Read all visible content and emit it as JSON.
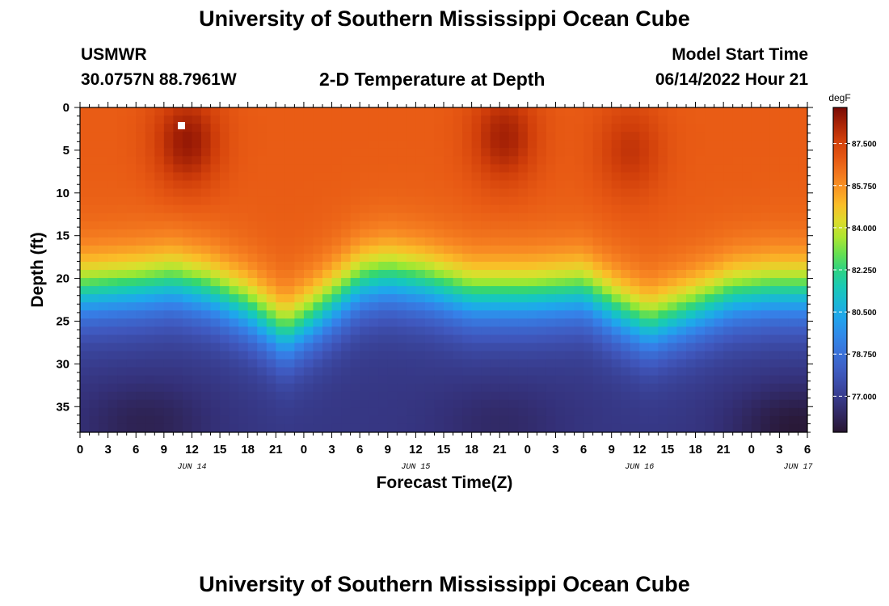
{
  "page": {
    "title_top": "University of Southern Mississippi Ocean Cube",
    "title_bottom": "University of Southern Mississippi Ocean Cube",
    "station": "USMWR",
    "coords": "30.0757N  88.7961W",
    "subtitle": "2-D Temperature at Depth",
    "model_start_label": "Model Start Time",
    "model_start_value": "06/14/2022 Hour 21"
  },
  "chart_data": {
    "type": "heatmap",
    "title": "2-D Temperature at Depth",
    "xlabel": "Forecast Time(Z)",
    "ylabel": "Depth (ft)",
    "colorbar_units": "degF",
    "x_range_hours": [
      0,
      78
    ],
    "x_ticks": [
      {
        "hour": 0,
        "label": "0"
      },
      {
        "hour": 3,
        "label": "3"
      },
      {
        "hour": 6,
        "label": "6"
      },
      {
        "hour": 9,
        "label": "9"
      },
      {
        "hour": 12,
        "label": "12"
      },
      {
        "hour": 15,
        "label": "15"
      },
      {
        "hour": 18,
        "label": "18"
      },
      {
        "hour": 21,
        "label": "21"
      },
      {
        "hour": 24,
        "label": "0"
      },
      {
        "hour": 27,
        "label": "3"
      },
      {
        "hour": 30,
        "label": "6"
      },
      {
        "hour": 33,
        "label": "9"
      },
      {
        "hour": 36,
        "label": "12"
      },
      {
        "hour": 39,
        "label": "15"
      },
      {
        "hour": 42,
        "label": "18"
      },
      {
        "hour": 45,
        "label": "21"
      },
      {
        "hour": 48,
        "label": "0"
      },
      {
        "hour": 51,
        "label": "3"
      },
      {
        "hour": 54,
        "label": "6"
      },
      {
        "hour": 57,
        "label": "9"
      },
      {
        "hour": 60,
        "label": "12"
      },
      {
        "hour": 63,
        "label": "15"
      },
      {
        "hour": 66,
        "label": "18"
      },
      {
        "hour": 69,
        "label": "21"
      },
      {
        "hour": 72,
        "label": "0"
      },
      {
        "hour": 75,
        "label": "3"
      },
      {
        "hour": 78,
        "label": "6"
      }
    ],
    "date_labels": [
      {
        "hour": 12,
        "label": "JUN 14"
      },
      {
        "hour": 36,
        "label": "JUN 15"
      },
      {
        "hour": 60,
        "label": "JUN 16"
      },
      {
        "hour": 77,
        "label": "JUN 17"
      }
    ],
    "y_range_ft": [
      0,
      38
    ],
    "y_ticks": [
      0,
      5,
      10,
      15,
      20,
      25,
      30,
      35
    ],
    "colorbar_range": [
      75.5,
      89.0
    ],
    "colorbar_ticks": [
      "87.500",
      "85.750",
      "84.000",
      "82.250",
      "80.500",
      "78.750",
      "77.000"
    ],
    "field": {
      "surface_temp": 86.8,
      "bottom_temp": 76.8,
      "thermocline_depth_by_hour": [
        [
          0,
          18.5
        ],
        [
          6,
          18
        ],
        [
          10,
          17.5
        ],
        [
          14,
          18.5
        ],
        [
          18,
          20.5
        ],
        [
          22,
          23.5
        ],
        [
          25,
          21.5
        ],
        [
          30,
          17.5
        ],
        [
          33,
          16.8
        ],
        [
          37,
          17.5
        ],
        [
          42,
          19
        ],
        [
          48,
          19
        ],
        [
          54,
          18.5
        ],
        [
          58,
          21
        ],
        [
          61,
          22.5
        ],
        [
          65,
          21
        ],
        [
          70,
          19
        ],
        [
          74,
          18.5
        ],
        [
          78,
          18.5
        ]
      ],
      "warm_cores": [
        {
          "hour": 11.5,
          "depth_ft": 4,
          "temp": 88.6
        },
        {
          "hour": 45.5,
          "depth_ft": 3.5,
          "temp": 88.4
        },
        {
          "hour": 59,
          "depth_ft": 5,
          "temp": 87.9
        }
      ],
      "cold_cores": [
        {
          "hour": 7,
          "depth_ft": 37,
          "temp": 76.0
        },
        {
          "hour": 45,
          "depth_ft": 37,
          "temp": 76.3
        },
        {
          "hour": 77,
          "depth_ft": 37.5,
          "temp": 75.6
        }
      ]
    }
  }
}
